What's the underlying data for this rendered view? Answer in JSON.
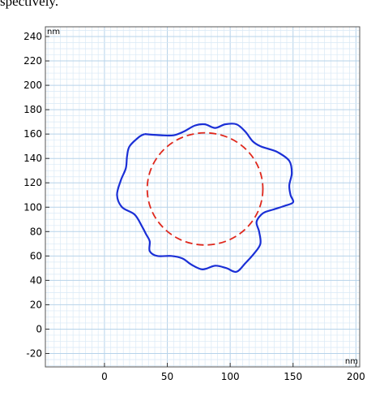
{
  "caption_fragment": "spectively.",
  "chart_data": {
    "type": "line",
    "title": "",
    "x_unit": "nm",
    "y_unit": "nm",
    "xlim": [
      -47,
      203
    ],
    "ylim": [
      -31,
      248
    ],
    "x_ticks": [
      0,
      50,
      100,
      150,
      200
    ],
    "y_ticks": [
      -20,
      0,
      20,
      40,
      60,
      80,
      100,
      120,
      140,
      160,
      180,
      200,
      220,
      240
    ],
    "grid": true,
    "minor_grid_step": 5,
    "series": [
      {
        "style": "solid",
        "color": "#1a2fd6",
        "points": [
          [
            32,
            160
          ],
          [
            45,
            159
          ],
          [
            55,
            159
          ],
          [
            63,
            162
          ],
          [
            72,
            167
          ],
          [
            80,
            168
          ],
          [
            88,
            165
          ],
          [
            96,
            168
          ],
          [
            105,
            168
          ],
          [
            112,
            162
          ],
          [
            118,
            154
          ],
          [
            124,
            150
          ],
          [
            130,
            148
          ],
          [
            138,
            145
          ],
          [
            147,
            138
          ],
          [
            149,
            128
          ],
          [
            147,
            118
          ],
          [
            148,
            110
          ],
          [
            150,
            104
          ],
          [
            143,
            101
          ],
          [
            134,
            98
          ],
          [
            126,
            95
          ],
          [
            121,
            88
          ],
          [
            123,
            80
          ],
          [
            124,
            70
          ],
          [
            119,
            62
          ],
          [
            112,
            54
          ],
          [
            105,
            47
          ],
          [
            97,
            50
          ],
          [
            88,
            52
          ],
          [
            78,
            49
          ],
          [
            69,
            53
          ],
          [
            62,
            58
          ],
          [
            53,
            60
          ],
          [
            42,
            60
          ],
          [
            36,
            64
          ],
          [
            36,
            72
          ],
          [
            33,
            78
          ],
          [
            30,
            84
          ],
          [
            24,
            94
          ],
          [
            14,
            100
          ],
          [
            10,
            110
          ],
          [
            13,
            122
          ],
          [
            17,
            132
          ],
          [
            18,
            142
          ],
          [
            20,
            150
          ],
          [
            28,
            158
          ],
          [
            32,
            160
          ]
        ]
      },
      {
        "style": "dashed",
        "color": "#e0281c",
        "center": [
          80,
          115
        ],
        "radius": 46
      }
    ]
  }
}
